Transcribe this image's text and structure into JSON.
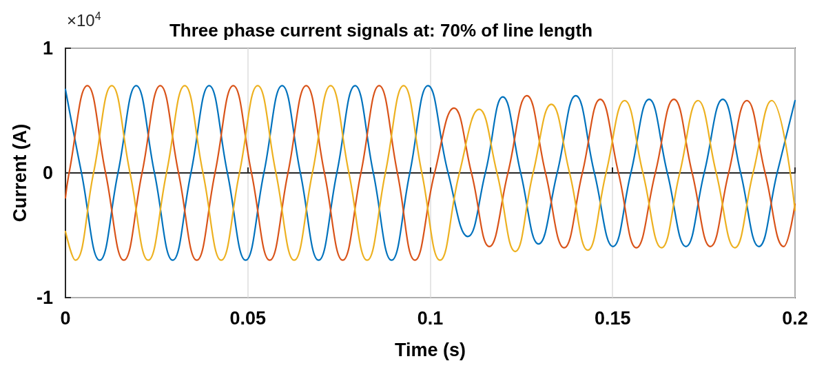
{
  "chart_data": {
    "type": "line",
    "title": "Three phase current signals at: 70% of line length",
    "xlabel": "Time (s)",
    "ylabel": "Current (A)",
    "annotations": [
      "×10$^{4}$"
    ],
    "xlim": [
      0,
      0.2
    ],
    "xticks": [
      0,
      0.05,
      0.1,
      0.15,
      0.2
    ],
    "ylim": [
      -1,
      1
    ],
    "yticks": [
      -1,
      0,
      1
    ],
    "grid": true,
    "marker": "none",
    "line_style": "solid",
    "series": [
      {
        "color": "#0072bd",
        "x": [
          0,
          0.0044,
          0.0094,
          0.0144,
          0.0194,
          0.0244,
          0.0294,
          0.0344,
          0.0394,
          0.0444,
          0.0494,
          0.0544,
          0.0594,
          0.0644,
          0.0694,
          0.0744,
          0.0794,
          0.0844,
          0.0894,
          0.0944,
          0.0994,
          0.1049,
          0.1103,
          0.1151,
          0.1199,
          0.1248,
          0.1297,
          0.1348,
          0.1399,
          0.145,
          0.1501,
          0.155,
          0.16,
          0.165,
          0.1701,
          0.1751,
          0.1802,
          0.1851,
          0.1901,
          0.1951,
          0.2
        ],
        "values": [
          0.67,
          0,
          -0.7,
          0,
          0.7,
          0,
          -0.7,
          0,
          0.7,
          0,
          -0.7,
          0,
          0.7,
          0,
          -0.7,
          0,
          0.7,
          0,
          -0.7,
          0,
          0.7,
          0,
          -0.51,
          0,
          0.61,
          0,
          -0.57,
          0,
          0.62,
          0,
          -0.59,
          0,
          0.59,
          0,
          -0.59,
          0,
          0.59,
          0,
          -0.59,
          0,
          0.58
        ]
      },
      {
        "color": "#d95319",
        "x": [
          0,
          0.001,
          0.006,
          0.011,
          0.016,
          0.021,
          0.026,
          0.031,
          0.036,
          0.041,
          0.046,
          0.051,
          0.056,
          0.061,
          0.066,
          0.071,
          0.076,
          0.081,
          0.086,
          0.091,
          0.0958,
          0.1012,
          0.1065,
          0.1113,
          0.1162,
          0.1213,
          0.1265,
          0.1316,
          0.1367,
          0.1417,
          0.1466,
          0.1516,
          0.1565,
          0.1617,
          0.1668,
          0.1718,
          0.1768,
          0.1818,
          0.1868,
          0.1918,
          0.1969,
          0.2
        ],
        "values": [
          -0.2,
          0,
          0.7,
          0,
          -0.7,
          0,
          0.7,
          0,
          -0.7,
          0,
          0.7,
          0,
          -0.7,
          0,
          0.7,
          0,
          -0.7,
          0,
          0.7,
          0,
          -0.7,
          0,
          0.52,
          0,
          -0.59,
          0,
          0.62,
          0,
          -0.6,
          0,
          0.59,
          0,
          -0.6,
          0,
          0.59,
          0,
          -0.59,
          0,
          0.58,
          0,
          -0.59,
          -0.25
        ]
      },
      {
        "color": "#edb120",
        "x": [
          0,
          0.0027,
          0.0077,
          0.0127,
          0.0177,
          0.0227,
          0.0277,
          0.0327,
          0.0377,
          0.0427,
          0.0477,
          0.0527,
          0.0577,
          0.0627,
          0.0677,
          0.0727,
          0.0777,
          0.0827,
          0.0877,
          0.0927,
          0.0977,
          0.1027,
          0.108,
          0.1134,
          0.1183,
          0.1233,
          0.1282,
          0.1332,
          0.1382,
          0.1432,
          0.1482,
          0.1533,
          0.1583,
          0.1634,
          0.1684,
          0.1734,
          0.1784,
          0.1835,
          0.1885,
          0.1936,
          0.2
        ],
        "values": [
          -0.47,
          -0.7,
          0,
          0.7,
          0,
          -0.7,
          0,
          0.7,
          0,
          -0.7,
          0,
          0.7,
          0,
          -0.7,
          0,
          0.7,
          0,
          -0.7,
          0,
          0.7,
          0,
          -0.7,
          0,
          0.51,
          0,
          -0.63,
          0,
          0.55,
          0,
          -0.62,
          0,
          0.58,
          0,
          -0.6,
          0,
          0.58,
          0,
          -0.6,
          0,
          0.58,
          -0.3
        ]
      }
    ]
  }
}
